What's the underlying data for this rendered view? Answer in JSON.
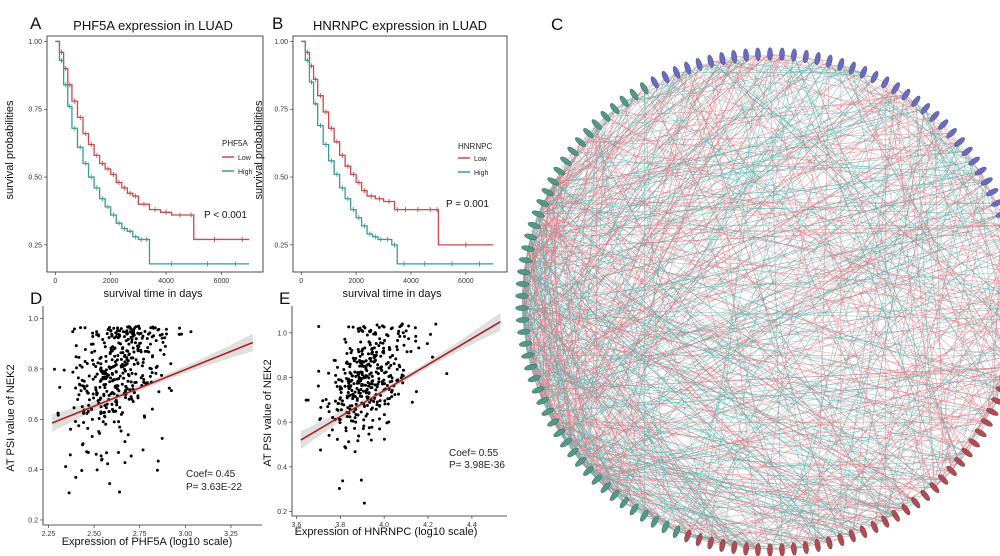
{
  "colors": {
    "low": "#cc4a4a",
    "high": "#3a9a96",
    "regression": "#b01e1e",
    "ci": "#d9d9d9",
    "point": "#000000",
    "edge_red": "#e07a86",
    "edge_teal": "#5cb8b2",
    "node_green": "#4f9a86",
    "node_blue": "#6a6ac4",
    "node_red": "#b24a52"
  },
  "chart_data": [
    {
      "panel": "A",
      "type": "line",
      "title": "PHF5A expression in LUAD",
      "xlabel": "survival time in days",
      "ylabel": "survival probabilities",
      "xlim": [
        -300,
        7500
      ],
      "ylim": [
        0.15,
        1.02
      ],
      "xticks": [
        0,
        2000,
        4000,
        6000
      ],
      "yticks": [
        0.25,
        0.5,
        0.75,
        1.0
      ],
      "ytick_labels": [
        "0.25",
        "0.50",
        "0.75",
        "1.00"
      ],
      "legend_title": "PHF5A",
      "legend_position": "right",
      "annotation": "P < 0.001",
      "series": [
        {
          "name": "Low",
          "color_key": "low",
          "x": [
            0,
            150,
            300,
            450,
            600,
            800,
            1000,
            1200,
            1400,
            1600,
            1800,
            2000,
            2200,
            2400,
            2600,
            2800,
            3000,
            3400,
            3800,
            4200,
            4800,
            5000,
            6500,
            7000
          ],
          "y": [
            1.0,
            0.96,
            0.9,
            0.84,
            0.78,
            0.72,
            0.66,
            0.62,
            0.58,
            0.55,
            0.53,
            0.51,
            0.48,
            0.46,
            0.44,
            0.43,
            0.4,
            0.38,
            0.37,
            0.36,
            0.36,
            0.27,
            0.27,
            0.27
          ]
        },
        {
          "name": "High",
          "color_key": "high",
          "x": [
            0,
            150,
            300,
            450,
            600,
            800,
            1000,
            1200,
            1400,
            1600,
            1800,
            2000,
            2200,
            2400,
            2600,
            2800,
            3000,
            3200,
            3400,
            5000,
            6000,
            7000
          ],
          "y": [
            1.0,
            0.93,
            0.84,
            0.76,
            0.68,
            0.61,
            0.55,
            0.5,
            0.46,
            0.42,
            0.39,
            0.36,
            0.33,
            0.31,
            0.3,
            0.28,
            0.27,
            0.27,
            0.18,
            0.18,
            0.18,
            0.18
          ]
        }
      ]
    },
    {
      "panel": "B",
      "type": "line",
      "title": "HNRNPC expression in LUAD",
      "xlabel": "survival time in days",
      "ylabel": "survival probabilities",
      "xlim": [
        -300,
        7500
      ],
      "ylim": [
        0.15,
        1.02
      ],
      "xticks": [
        0,
        2000,
        4000,
        6000
      ],
      "yticks": [
        0.25,
        0.5,
        0.75,
        1.0
      ],
      "ytick_labels": [
        "0.25",
        "0.50",
        "0.75",
        "1.00"
      ],
      "legend_title": "HNRNPC",
      "legend_position": "right",
      "annotation": "P = 0.001",
      "series": [
        {
          "name": "Low",
          "color_key": "low",
          "x": [
            0,
            150,
            300,
            450,
            600,
            800,
            1000,
            1200,
            1400,
            1600,
            1800,
            2000,
            2200,
            2400,
            2700,
            3000,
            3400,
            3600,
            4000,
            4500,
            4900,
            5000,
            7000
          ],
          "y": [
            1.0,
            0.96,
            0.91,
            0.86,
            0.8,
            0.74,
            0.68,
            0.63,
            0.58,
            0.54,
            0.51,
            0.48,
            0.45,
            0.43,
            0.42,
            0.41,
            0.38,
            0.38,
            0.38,
            0.38,
            0.38,
            0.25,
            0.25
          ]
        },
        {
          "name": "High",
          "color_key": "high",
          "x": [
            0,
            150,
            300,
            450,
            600,
            800,
            1000,
            1200,
            1400,
            1600,
            1800,
            2000,
            2200,
            2400,
            2600,
            2800,
            3000,
            3300,
            3500,
            4000,
            5000,
            6000,
            7000
          ],
          "y": [
            1.0,
            0.93,
            0.85,
            0.77,
            0.69,
            0.62,
            0.56,
            0.51,
            0.46,
            0.42,
            0.38,
            0.35,
            0.32,
            0.29,
            0.28,
            0.27,
            0.27,
            0.25,
            0.18,
            0.18,
            0.18,
            0.18,
            0.18
          ]
        }
      ]
    },
    {
      "panel": "D",
      "type": "scatter",
      "xlabel": "Expression of PHF5A (log10 scale)",
      "ylabel": "AT PSI value of NEK2",
      "xlim": [
        2.22,
        3.42
      ],
      "ylim": [
        0.18,
        1.05
      ],
      "xticks": [
        2.25,
        2.5,
        2.75,
        3.0,
        3.25
      ],
      "xtick_labels": [
        "2.25",
        "2.50",
        "2.75",
        "3.00",
        "3.25"
      ],
      "yticks": [
        0.2,
        0.4,
        0.6,
        0.8,
        1.0
      ],
      "ytick_labels": [
        "0.2",
        "0.4",
        "0.6",
        "0.8",
        "1.0"
      ],
      "regression": {
        "x": [
          2.27,
          3.37
        ],
        "y": [
          0.585,
          0.905
        ],
        "ci_halfwidth_ends": 0.035,
        "ci_halfwidth_mid": 0.012
      },
      "stats": [
        "Coef= 0.45",
        "P= 3.63E-22"
      ],
      "n_points": 420,
      "seed": 7,
      "cloud": {
        "x_mean": 2.63,
        "x_sd": 0.13,
        "y_intercept": 0.585,
        "y_slope": 0.29,
        "y_sd": 0.13,
        "x_min": 2.27,
        "x_max": 3.37
      }
    },
    {
      "panel": "E",
      "type": "scatter",
      "xlabel": "Expression of HNRNPC (log10 scale)",
      "ylabel": "AT PSI value of NEK2",
      "xlim": [
        3.58,
        4.56
      ],
      "ylim": [
        0.18,
        1.12
      ],
      "xticks": [
        3.6,
        3.8,
        4.0,
        4.2,
        4.4
      ],
      "xtick_labels": [
        "3.6",
        "3.8",
        "4.0",
        "4.2",
        "4.4"
      ],
      "yticks": [
        0.2,
        0.4,
        0.6,
        0.8,
        1.0
      ],
      "ytick_labels": [
        "0.2",
        "0.4",
        "0.6",
        "0.8",
        "1.0"
      ],
      "regression": {
        "x": [
          3.62,
          4.53
        ],
        "y": [
          0.52,
          1.05
        ],
        "ci_halfwidth_ends": 0.04,
        "ci_halfwidth_mid": 0.012
      },
      "stats": [
        "Coef= 0.55",
        "P= 3.98E-36"
      ],
      "n_points": 400,
      "seed": 11,
      "cloud": {
        "x_mean": 3.93,
        "x_sd": 0.1,
        "y_intercept": 0.52,
        "y_slope": 0.58,
        "y_sd": 0.13,
        "x_min": 3.62,
        "x_max": 4.53
      }
    },
    {
      "panel": "C",
      "type": "network",
      "layout": "circular",
      "n_nodes": 130,
      "n_edges": 900,
      "seed": 3,
      "node_groups": [
        {
          "color_key": "node_green",
          "start_fraction": 0.56,
          "end_fraction": 0.92
        },
        {
          "color_key": "node_blue",
          "start_fraction": 0.92,
          "end_fraction": 1.0
        },
        {
          "color_key": "node_blue",
          "start_fraction": 0.0,
          "end_fraction": 0.22
        },
        {
          "color_key": "node_red",
          "start_fraction": 0.22,
          "end_fraction": 0.56
        }
      ],
      "edge_colors": [
        "edge_red",
        "edge_teal"
      ]
    }
  ]
}
